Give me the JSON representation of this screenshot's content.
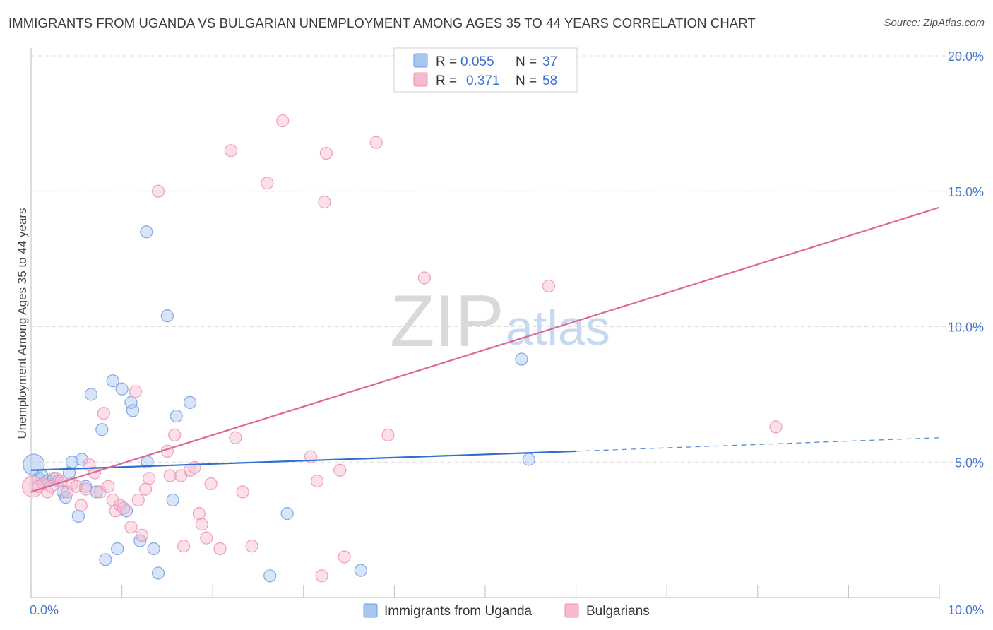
{
  "title": "IMMIGRANTS FROM UGANDA VS BULGARIAN UNEMPLOYMENT AMONG AGES 35 TO 44 YEARS CORRELATION CHART",
  "source": "Source: ZipAtlas.com",
  "watermark": {
    "zip": "ZIP",
    "atlas": "atlas"
  },
  "colors": {
    "blue_fill": "#a9c6ef",
    "blue_stroke": "#6f9be0",
    "blue_line": "#2f6fcf",
    "pink_fill": "#f7b9ce",
    "pink_stroke": "#ec8fb0",
    "pink_line": "#e06694",
    "grid": "#dcdcdc",
    "tick_label": "#4a78c8"
  },
  "legend": {
    "rows": [
      {
        "r_label": "R =",
        "r_value": "0.055",
        "n_label": "N =",
        "n_value": "37",
        "color": "blue"
      },
      {
        "r_label": "R =",
        "r_value": "0.371",
        "n_label": "N =",
        "n_value": "58",
        "color": "pink"
      }
    ]
  },
  "chart_data": {
    "type": "scatter",
    "title": "IMMIGRANTS FROM UGANDA VS BULGARIAN UNEMPLOYMENT AMONG AGES 35 TO 44 YEARS CORRELATION CHART",
    "xlabel": "",
    "ylabel": "Unemployment Among Ages 35 to 44 years",
    "xlim": [
      0,
      10
    ],
    "ylim": [
      0,
      20
    ],
    "x_tick_labels": [
      {
        "value": 0,
        "label": "0.0%"
      },
      {
        "value": 10,
        "label": "10.0%"
      }
    ],
    "y_tick_labels": [
      {
        "value": 5,
        "label": "5.0%"
      },
      {
        "value": 10,
        "label": "10.0%"
      },
      {
        "value": 15,
        "label": "15.0%"
      },
      {
        "value": 20,
        "label": "20.0%"
      }
    ],
    "series": [
      {
        "name": "Immigrants from Uganda",
        "color": "blue",
        "r": 0.055,
        "n": 37,
        "trend": {
          "x0": 0,
          "y0": 4.7,
          "x1": 6.0,
          "y1": 5.4,
          "dash_to_x": 10,
          "dash_to_y": 5.9
        },
        "points": [
          [
            0.03,
            4.9,
            1
          ],
          [
            0.08,
            4.4,
            0
          ],
          [
            0.12,
            4.5,
            0
          ],
          [
            0.18,
            4.3,
            0
          ],
          [
            0.25,
            4.4,
            0
          ],
          [
            0.3,
            4.3,
            0
          ],
          [
            0.35,
            3.9,
            0
          ],
          [
            0.38,
            3.7,
            0
          ],
          [
            0.42,
            4.6,
            0
          ],
          [
            0.45,
            5.0,
            0
          ],
          [
            0.52,
            3.0,
            0
          ],
          [
            0.56,
            5.1,
            0
          ],
          [
            0.6,
            4.1,
            0
          ],
          [
            0.66,
            7.5,
            0
          ],
          [
            0.72,
            3.9,
            0
          ],
          [
            0.78,
            6.2,
            0
          ],
          [
            0.82,
            1.4,
            0
          ],
          [
            0.9,
            8.0,
            0
          ],
          [
            0.95,
            1.8,
            0
          ],
          [
            1.0,
            7.7,
            0
          ],
          [
            1.05,
            3.2,
            0
          ],
          [
            1.1,
            7.2,
            0
          ],
          [
            1.12,
            6.9,
            0
          ],
          [
            1.2,
            2.1,
            0
          ],
          [
            1.27,
            13.5,
            0
          ],
          [
            1.28,
            5.0,
            0
          ],
          [
            1.35,
            1.8,
            0
          ],
          [
            1.4,
            0.9,
            0
          ],
          [
            1.5,
            10.4,
            0
          ],
          [
            1.56,
            3.6,
            0
          ],
          [
            1.6,
            6.7,
            0
          ],
          [
            1.75,
            7.2,
            0
          ],
          [
            2.63,
            0.8,
            0
          ],
          [
            2.82,
            3.1,
            0
          ],
          [
            3.63,
            1.0,
            0
          ],
          [
            5.4,
            8.8,
            0
          ],
          [
            5.48,
            5.1,
            0
          ]
        ]
      },
      {
        "name": "Bulgarians",
        "color": "pink",
        "r": 0.371,
        "n": 58,
        "trend": {
          "x0": 0,
          "y0": 3.9,
          "x1": 10,
          "y1": 14.4
        },
        "points": [
          [
            0.02,
            4.1,
            1
          ],
          [
            0.08,
            4.1,
            0
          ],
          [
            0.13,
            4.2,
            0
          ],
          [
            0.18,
            3.9,
            0
          ],
          [
            0.22,
            4.1,
            0
          ],
          [
            0.28,
            4.4,
            0
          ],
          [
            0.33,
            4.3,
            0
          ],
          [
            0.4,
            3.9,
            0
          ],
          [
            0.45,
            4.2,
            0
          ],
          [
            0.5,
            4.1,
            0
          ],
          [
            0.55,
            3.4,
            0
          ],
          [
            0.6,
            4.0,
            0
          ],
          [
            0.64,
            4.9,
            0
          ],
          [
            0.7,
            4.6,
            0
          ],
          [
            0.76,
            3.9,
            0
          ],
          [
            0.8,
            6.8,
            0
          ],
          [
            0.85,
            4.1,
            0
          ],
          [
            0.9,
            3.6,
            0
          ],
          [
            0.93,
            3.2,
            0
          ],
          [
            0.98,
            3.4,
            0
          ],
          [
            1.02,
            3.3,
            0
          ],
          [
            1.1,
            2.6,
            0
          ],
          [
            1.15,
            7.6,
            0
          ],
          [
            1.18,
            3.6,
            0
          ],
          [
            1.22,
            2.3,
            0
          ],
          [
            1.26,
            4.0,
            0
          ],
          [
            1.3,
            4.4,
            0
          ],
          [
            1.4,
            15.0,
            0
          ],
          [
            1.5,
            5.4,
            0
          ],
          [
            1.53,
            4.5,
            0
          ],
          [
            1.58,
            6.0,
            0
          ],
          [
            1.65,
            4.5,
            0
          ],
          [
            1.68,
            1.9,
            0
          ],
          [
            1.75,
            4.7,
            0
          ],
          [
            1.8,
            4.8,
            0
          ],
          [
            1.85,
            3.1,
            0
          ],
          [
            1.88,
            2.7,
            0
          ],
          [
            1.93,
            2.2,
            0
          ],
          [
            1.98,
            4.2,
            0
          ],
          [
            2.08,
            1.8,
            0
          ],
          [
            2.2,
            16.5,
            0
          ],
          [
            2.25,
            5.9,
            0
          ],
          [
            2.33,
            3.9,
            0
          ],
          [
            2.43,
            1.9,
            0
          ],
          [
            2.6,
            15.3,
            0
          ],
          [
            2.77,
            17.6,
            0
          ],
          [
            3.08,
            5.2,
            0
          ],
          [
            3.15,
            4.3,
            0
          ],
          [
            3.2,
            0.8,
            0
          ],
          [
            3.23,
            14.6,
            0
          ],
          [
            3.25,
            16.4,
            0
          ],
          [
            3.4,
            4.7,
            0
          ],
          [
            3.45,
            1.5,
            0
          ],
          [
            3.8,
            16.8,
            0
          ],
          [
            3.93,
            6.0,
            0
          ],
          [
            4.33,
            11.8,
            0
          ],
          [
            5.7,
            11.5,
            0
          ],
          [
            8.2,
            6.3,
            0
          ]
        ]
      }
    ]
  }
}
